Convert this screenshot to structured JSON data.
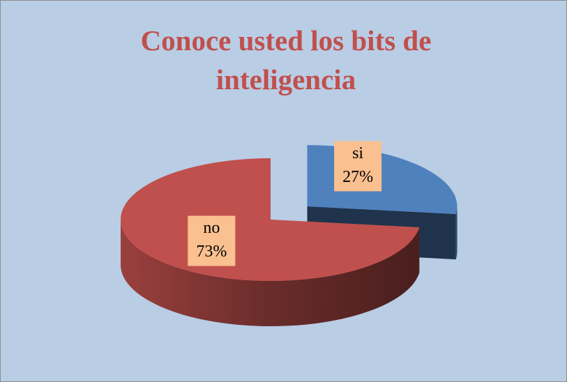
{
  "chart_data": {
    "type": "pie",
    "title": "Conoce usted los bits de inteligencia",
    "categories": [
      "si",
      "no"
    ],
    "values": [
      27,
      73
    ],
    "value_labels": [
      "27%",
      "73%"
    ],
    "colors": [
      "#4f81bd",
      "#c0504d"
    ]
  }
}
